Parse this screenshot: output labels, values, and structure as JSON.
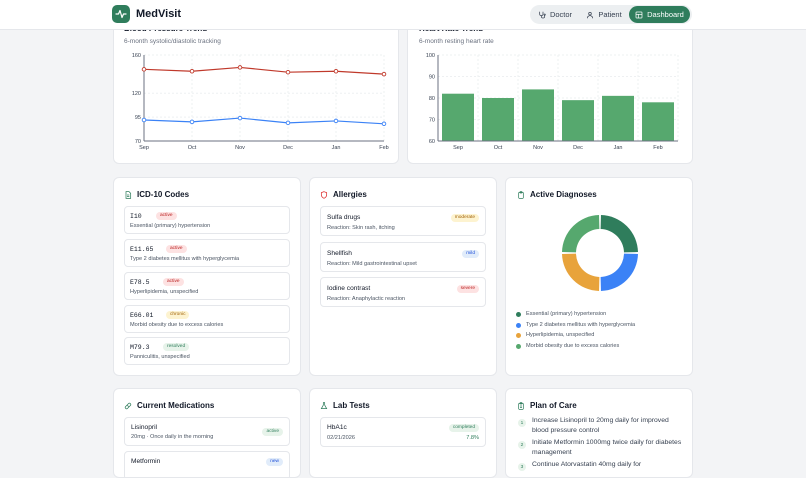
{
  "app": {
    "name": "MedVisit"
  },
  "nav": [
    {
      "label": "Doctor",
      "icon": "stethoscope-icon",
      "active": false
    },
    {
      "label": "Patient",
      "icon": "user-icon",
      "active": false
    },
    {
      "label": "Dashboard",
      "icon": "dashboard-icon",
      "active": true
    }
  ],
  "bp_card": {
    "title": "Blood Pressure Trend",
    "subtitle": "6-month systolic/diastolic tracking"
  },
  "hr_card": {
    "title": "Heart Rate Trend",
    "subtitle": "6-month resting heart rate"
  },
  "chart_data": [
    {
      "type": "line",
      "title": "Blood Pressure Trend",
      "subtitle": "6-month systolic/diastolic tracking",
      "categories": [
        "Sep",
        "Oct",
        "Nov",
        "Dec",
        "Jan",
        "Feb"
      ],
      "series": [
        {
          "values": [
            145,
            143,
            147,
            142,
            143,
            140
          ],
          "color": "#c0392b"
        },
        {
          "values": [
            92,
            90,
            94,
            89,
            91,
            88
          ],
          "color": "#3b82f6"
        }
      ],
      "yticks": [
        70,
        95,
        120,
        160
      ],
      "ylim": [
        70,
        160
      ],
      "grid": true
    },
    {
      "type": "bar",
      "title": "Heart Rate Trend",
      "subtitle": "6-month resting heart rate",
      "categories": [
        "Sep",
        "Oct",
        "Nov",
        "Dec",
        "Jan",
        "Feb"
      ],
      "values": [
        82,
        80,
        84,
        79,
        81,
        78
      ],
      "yticks": [
        60,
        70,
        80,
        90,
        100
      ],
      "ylim": [
        60,
        100
      ],
      "color": "#56a86e",
      "grid": true
    },
    {
      "type": "pie",
      "title": "Active Diagnoses",
      "categories": [
        "Essential (primary) hypertension",
        "Type 2 diabetes mellitus with hyperglycemia",
        "Hyperlipidemia, unspecified",
        "Morbid obesity due to excess calories"
      ],
      "values": [
        25,
        25,
        25,
        25
      ],
      "colors": [
        "#2f7d5c",
        "#3b82f6",
        "#e8a33b",
        "#56a86e"
      ],
      "legend": "bottom"
    }
  ],
  "icd": {
    "title": "ICD-10 Codes",
    "items": [
      {
        "code": "I10",
        "status": "active",
        "desc": "Essential (primary) hypertension"
      },
      {
        "code": "E11.65",
        "status": "active",
        "desc": "Type 2 diabetes mellitus with hyperglycemia"
      },
      {
        "code": "E78.5",
        "status": "active",
        "desc": "Hyperlipidemia, unspecified"
      },
      {
        "code": "E66.01",
        "status": "chronic",
        "desc": "Morbid obesity due to excess calories"
      },
      {
        "code": "M79.3",
        "status": "resolved",
        "desc": "Panniculitis, unspecified"
      }
    ]
  },
  "allergies": {
    "title": "Allergies",
    "items": [
      {
        "name": "Sulfa drugs",
        "severity": "moderate",
        "reaction": "Reaction: Skin rash, itching"
      },
      {
        "name": "Shellfish",
        "severity": "mild",
        "reaction": "Reaction: Mild gastrointestinal upset"
      },
      {
        "name": "Iodine contrast",
        "severity": "severe",
        "reaction": "Reaction: Anaphylactic reaction"
      }
    ]
  },
  "diagnoses": {
    "title": "Active Diagnoses",
    "legend": [
      {
        "label": "Essential (primary) hypertension",
        "color": "#2f7d5c"
      },
      {
        "label": "Type 2 diabetes mellitus with hyperglycemia",
        "color": "#3b82f6"
      },
      {
        "label": "Hyperlipidemia, unspecified",
        "color": "#e8a33b"
      },
      {
        "label": "Morbid obesity due to excess calories",
        "color": "#56a86e"
      }
    ]
  },
  "medications": {
    "title": "Current Medications",
    "items": [
      {
        "name": "Lisinopril",
        "dose": "20mg · Once daily in the morning",
        "status": "active"
      },
      {
        "name": "Metformin",
        "dose": "",
        "status": "new"
      }
    ]
  },
  "labs": {
    "title": "Lab Tests",
    "items": [
      {
        "name": "HbA1c",
        "date": "02/21/2026",
        "status": "completed",
        "value": "7.8%"
      }
    ]
  },
  "plan": {
    "title": "Plan of Care",
    "items": [
      {
        "num": "1",
        "text": "Increase Lisinopril to 20mg daily for improved blood pressure control"
      },
      {
        "num": "2",
        "text": "Initiate Metformin 1000mg twice daily for diabetes management"
      },
      {
        "num": "3",
        "text": "Continue Atorvastatin 40mg daily for"
      }
    ]
  }
}
